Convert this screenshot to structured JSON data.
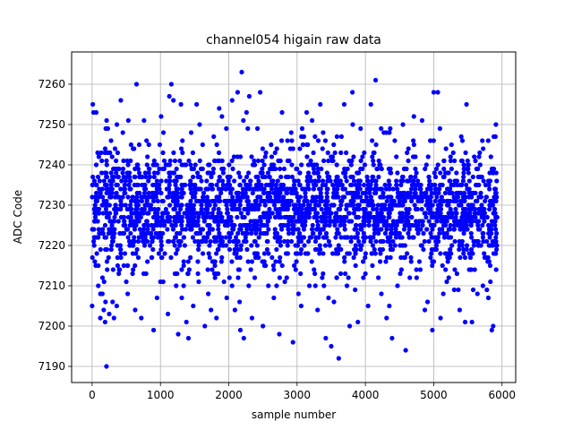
{
  "chart_data": {
    "type": "scatter",
    "title": "channel054 higain raw data",
    "xlabel": "sample number",
    "ylabel": "ADC Code",
    "xlim": [
      -300,
      6200
    ],
    "ylim": [
      7186,
      7268
    ],
    "xticks": [
      0,
      1000,
      2000,
      3000,
      4000,
      5000,
      6000
    ],
    "yticks": [
      7190,
      7200,
      7210,
      7220,
      7230,
      7240,
      7250,
      7260
    ],
    "grid": true,
    "marker_color": "#0000ff",
    "series": [
      {
        "name": "",
        "notes_sampling": "",
        "points": [
          [
            0,
            7205
          ],
          [
            10,
            7255
          ],
          [
            20,
            7253
          ],
          [
            40,
            7216
          ],
          [
            60,
            7253
          ],
          [
            90,
            7210
          ],
          [
            120,
            7202
          ],
          [
            150,
            7208
          ],
          [
            170,
            7204
          ],
          [
            190,
            7201
          ],
          [
            210,
            7190
          ],
          [
            230,
            7249
          ],
          [
            250,
            7203
          ],
          [
            280,
            7219
          ],
          [
            300,
            7206
          ],
          [
            320,
            7202
          ],
          [
            360,
            7205
          ],
          [
            390,
            7213
          ],
          [
            420,
            7256
          ],
          [
            450,
            7248
          ],
          [
            500,
            7211
          ],
          [
            530,
            7251
          ],
          [
            570,
            7245
          ],
          [
            600,
            7214
          ],
          [
            630,
            7204
          ],
          [
            650,
            7260
          ],
          [
            690,
            7238
          ],
          [
            720,
            7202
          ],
          [
            760,
            7251
          ],
          [
            790,
            7213
          ],
          [
            830,
            7245
          ],
          [
            870,
            7217
          ],
          [
            900,
            7199
          ],
          [
            950,
            7207
          ],
          [
            990,
            7245
          ],
          [
            1010,
            7252
          ],
          [
            1040,
            7211
          ],
          [
            1080,
            7240
          ],
          [
            1110,
            7203
          ],
          [
            1130,
            7257
          ],
          [
            1160,
            7260
          ],
          [
            1190,
            7256
          ],
          [
            1230,
            7210
          ],
          [
            1260,
            7198
          ],
          [
            1300,
            7255
          ],
          [
            1340,
            7210
          ],
          [
            1380,
            7201
          ],
          [
            1410,
            7197
          ],
          [
            1450,
            7248
          ],
          [
            1480,
            7205
          ],
          [
            1530,
            7255
          ],
          [
            1560,
            7211
          ],
          [
            1600,
            7230
          ],
          [
            1650,
            7200
          ],
          [
            1700,
            7208
          ],
          [
            1740,
            7204
          ],
          [
            1780,
            7247
          ],
          [
            1820,
            7202
          ],
          [
            1860,
            7254
          ],
          [
            1900,
            7252
          ],
          [
            1930,
            7211
          ],
          [
            1970,
            7207
          ],
          [
            2010,
            7212
          ],
          [
            2050,
            7256
          ],
          [
            2090,
            7204
          ],
          [
            2130,
            7258
          ],
          [
            2170,
            7199
          ],
          [
            2190,
            7263
          ],
          [
            2220,
            7197
          ],
          [
            2260,
            7253
          ],
          [
            2300,
            7257
          ],
          [
            2340,
            7202
          ],
          [
            2380,
            7212
          ],
          [
            2420,
            7249
          ],
          [
            2460,
            7258
          ],
          [
            2500,
            7200
          ],
          [
            2540,
            7215
          ],
          [
            2580,
            7210
          ],
          [
            2620,
            7245
          ],
          [
            2660,
            7207
          ],
          [
            2700,
            7210
          ],
          [
            2740,
            7198
          ],
          [
            2780,
            7253
          ],
          [
            2820,
            7211
          ],
          [
            2860,
            7246
          ],
          [
            2900,
            7226
          ],
          [
            2940,
            7196
          ],
          [
            2980,
            7214
          ],
          [
            3020,
            7208
          ],
          [
            3060,
            7205
          ],
          [
            3100,
            7247
          ],
          [
            3140,
            7253
          ],
          [
            3180,
            7210
          ],
          [
            3220,
            7251
          ],
          [
            3260,
            7213
          ],
          [
            3300,
            7204
          ],
          [
            3340,
            7255
          ],
          [
            3380,
            7213
          ],
          [
            3420,
            7197
          ],
          [
            3460,
            7207
          ],
          [
            3500,
            7195
          ],
          [
            3540,
            7206
          ],
          [
            3580,
            7212
          ],
          [
            3610,
            7192
          ],
          [
            3650,
            7247
          ],
          [
            3690,
            7255
          ],
          [
            3730,
            7210
          ],
          [
            3770,
            7200
          ],
          [
            3810,
            7258
          ],
          [
            3850,
            7209
          ],
          [
            3890,
            7201
          ],
          [
            3930,
            7249
          ],
          [
            3970,
            7212
          ],
          [
            4000,
            7213
          ],
          [
            4040,
            7205
          ],
          [
            4080,
            7255
          ],
          [
            4120,
            7243
          ],
          [
            4150,
            7261
          ],
          [
            4190,
            7212
          ],
          [
            4230,
            7249
          ],
          [
            4270,
            7248
          ],
          [
            4310,
            7202
          ],
          [
            4350,
            7205
          ],
          [
            4390,
            7197
          ],
          [
            4430,
            7246
          ],
          [
            4470,
            7210
          ],
          [
            4510,
            7213
          ],
          [
            4550,
            7250
          ],
          [
            4590,
            7194
          ],
          [
            4630,
            7244
          ],
          [
            4670,
            7216
          ],
          [
            4710,
            7252
          ],
          [
            4750,
            7212
          ],
          [
            4790,
            7216
          ],
          [
            4830,
            7251
          ],
          [
            4870,
            7204
          ],
          [
            4910,
            7206
          ],
          [
            4950,
            7246
          ],
          [
            4980,
            7199
          ],
          [
            5000,
            7258
          ],
          [
            5030,
            7222
          ],
          [
            5060,
            7258
          ],
          [
            5100,
            7202
          ],
          [
            5140,
            7208
          ],
          [
            5180,
            7244
          ],
          [
            5220,
            7212
          ],
          [
            5260,
            7245
          ],
          [
            5300,
            7209
          ],
          [
            5340,
            7213
          ],
          [
            5380,
            7204
          ],
          [
            5420,
            7246
          ],
          [
            5460,
            7201
          ],
          [
            5480,
            7255
          ],
          [
            5520,
            7214
          ],
          [
            5560,
            7201
          ],
          [
            5600,
            7214
          ],
          [
            5640,
            7208
          ],
          [
            5680,
            7240
          ],
          [
            5720,
            7210
          ],
          [
            5760,
            7235
          ],
          [
            5800,
            7207
          ],
          [
            5830,
            7211
          ],
          [
            5850,
            7199
          ],
          [
            5870,
            7200
          ],
          [
            5880,
            7247
          ],
          [
            5900,
            7226
          ],
          [
            5910,
            7250
          ],
          [
            5920,
            7220
          ]
        ]
      }
    ]
  }
}
